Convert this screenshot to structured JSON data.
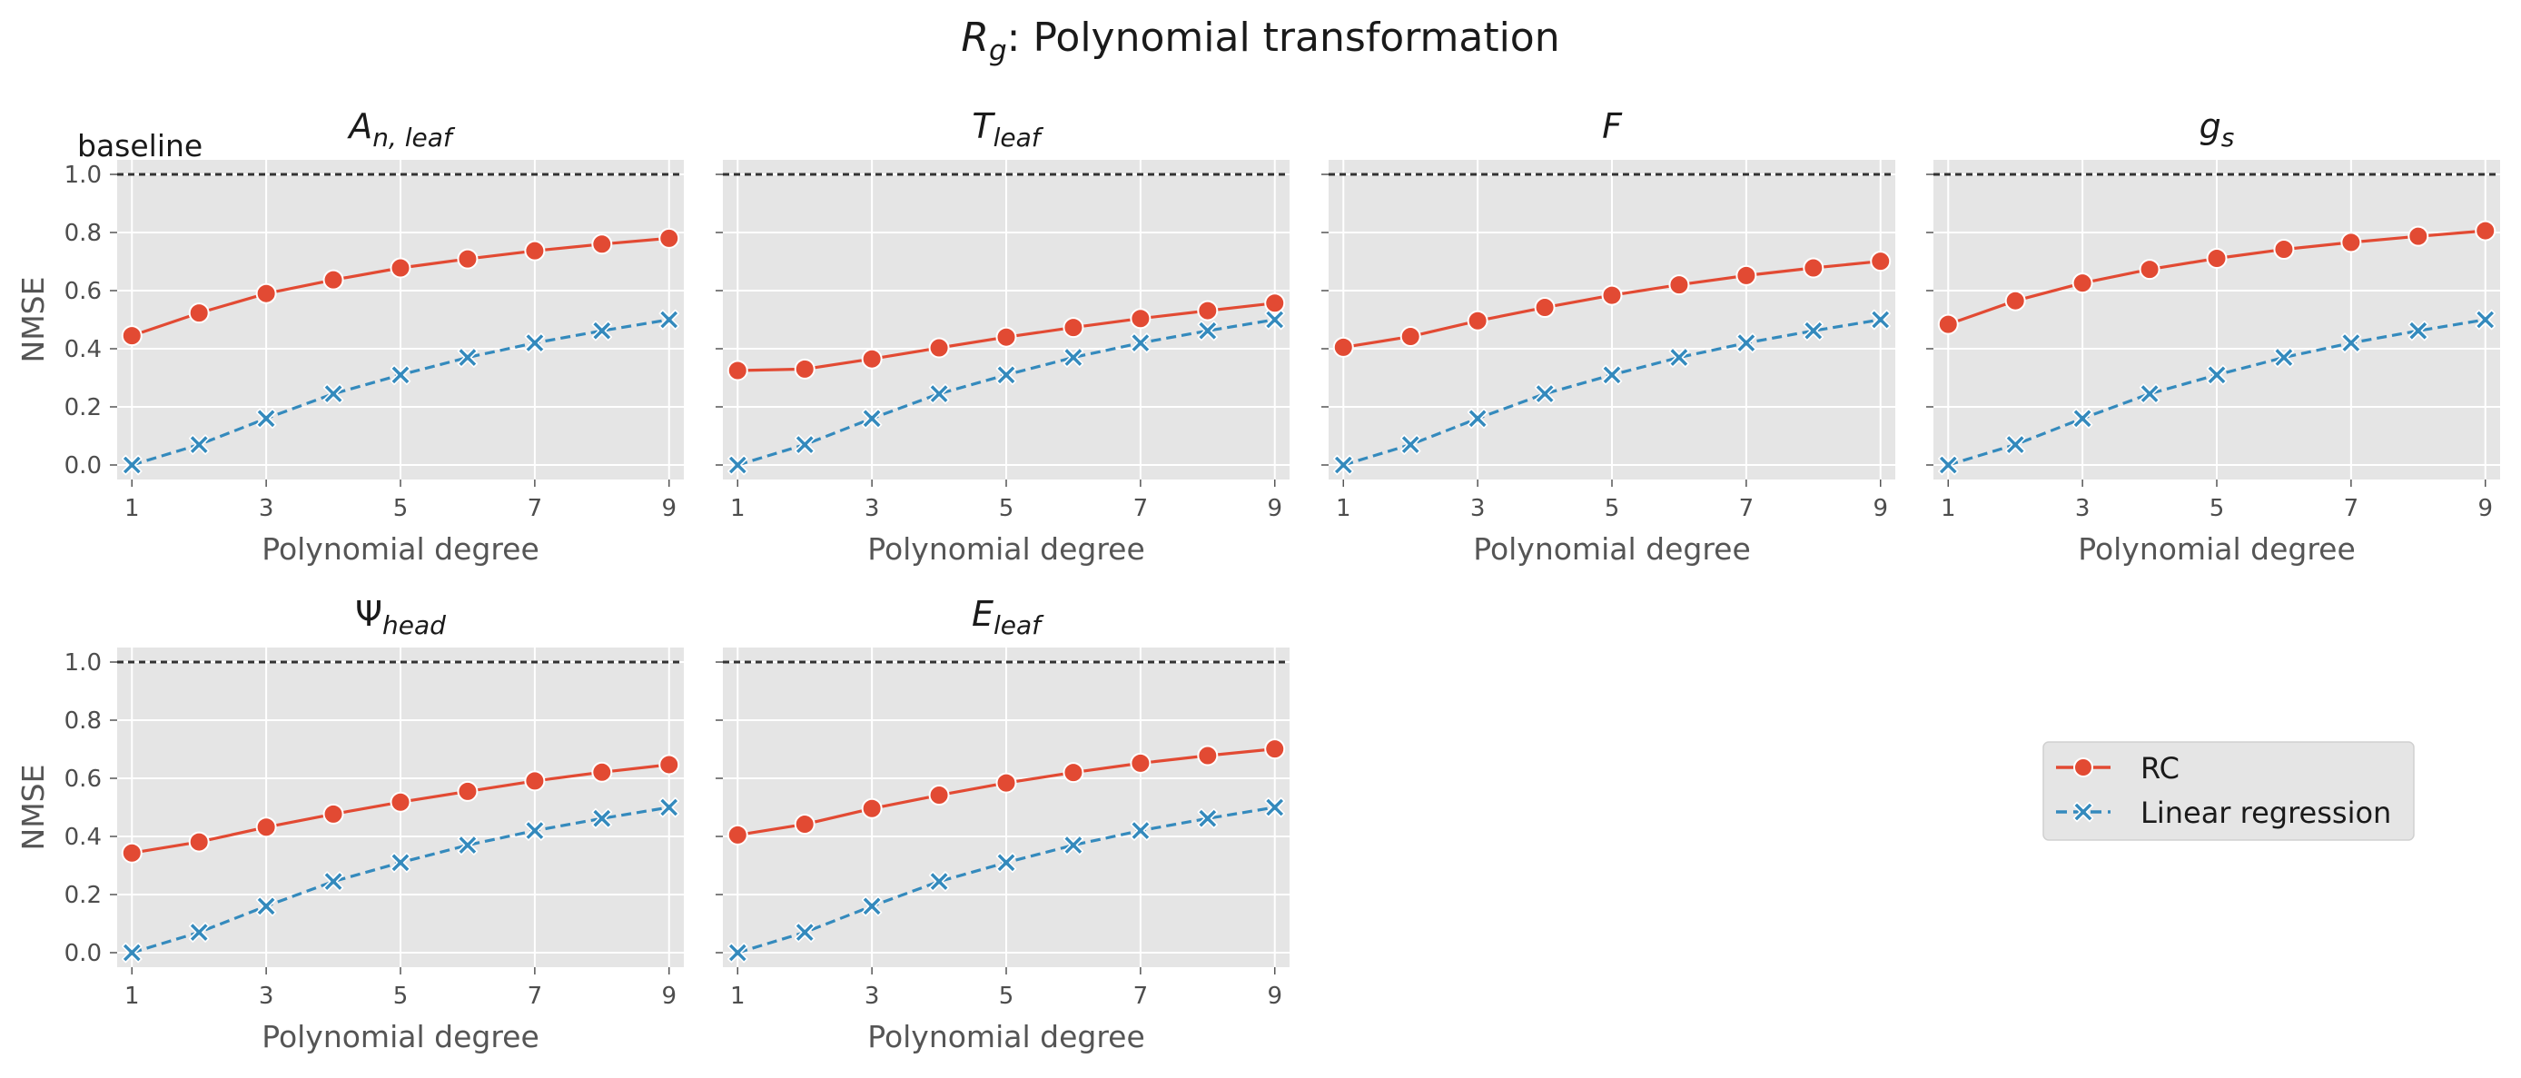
{
  "figure": {
    "title_main": "R",
    "title_sub": "g",
    "title_rest": ": Polynomial transformation"
  },
  "legend": {
    "rc_label": "RC",
    "lr_label": "Linear regression",
    "placement": "right, beside lower row"
  },
  "baseline_label": "baseline",
  "colors": {
    "rc": "#E24A33",
    "lr": "#348ABD",
    "panel_bg": "#E5E5E5",
    "grid": "#FFFFFF",
    "baseline": "#333333"
  },
  "chart_data": [
    {
      "type": "line",
      "title_main": "A",
      "title_sub": "n, leaf",
      "xlabel": "Polynomial degree",
      "ylabel": "NMSE",
      "x": [
        1,
        2,
        3,
        4,
        5,
        6,
        7,
        8,
        9
      ],
      "xticks": [
        1,
        3,
        5,
        7,
        9
      ],
      "yticks": [
        "0.0",
        "0.2",
        "0.4",
        "0.6",
        "0.8",
        "1.0"
      ],
      "ylim": [
        -0.05,
        1.05
      ],
      "baseline": 1.0,
      "grid": true,
      "series": [
        {
          "name": "RC",
          "marker": "circle",
          "line": "solid",
          "values": [
            0.445,
            0.523,
            0.59,
            0.637,
            0.678,
            0.709,
            0.737,
            0.76,
            0.78
          ]
        },
        {
          "name": "Linear regression",
          "marker": "x",
          "line": "dashed",
          "values": [
            0.0,
            0.07,
            0.16,
            0.245,
            0.31,
            0.37,
            0.42,
            0.462,
            0.5
          ]
        }
      ]
    },
    {
      "type": "line",
      "title_main": "T",
      "title_sub": "leaf",
      "xlabel": "Polynomial degree",
      "ylabel": "",
      "x": [
        1,
        2,
        3,
        4,
        5,
        6,
        7,
        8,
        9
      ],
      "xticks": [
        1,
        3,
        5,
        7,
        9
      ],
      "yticks": [
        "",
        "",
        "",
        "",
        "",
        ""
      ],
      "ylim": [
        -0.05,
        1.05
      ],
      "baseline": 1.0,
      "grid": true,
      "series": [
        {
          "name": "RC",
          "marker": "circle",
          "line": "solid",
          "values": [
            0.325,
            0.33,
            0.365,
            0.403,
            0.44,
            0.473,
            0.504,
            0.531,
            0.557
          ]
        },
        {
          "name": "Linear regression",
          "marker": "x",
          "line": "dashed",
          "values": [
            0.0,
            0.07,
            0.16,
            0.245,
            0.31,
            0.37,
            0.42,
            0.462,
            0.5
          ]
        }
      ]
    },
    {
      "type": "line",
      "title_main": "F",
      "title_sub": "",
      "xlabel": "Polynomial degree",
      "ylabel": "",
      "x": [
        1,
        2,
        3,
        4,
        5,
        6,
        7,
        8,
        9
      ],
      "xticks": [
        1,
        3,
        5,
        7,
        9
      ],
      "yticks": [
        "",
        "",
        "",
        "",
        "",
        ""
      ],
      "ylim": [
        -0.05,
        1.05
      ],
      "baseline": 1.0,
      "grid": true,
      "series": [
        {
          "name": "RC",
          "marker": "circle",
          "line": "solid",
          "values": [
            0.405,
            0.442,
            0.496,
            0.542,
            0.584,
            0.62,
            0.652,
            0.678,
            0.701
          ]
        },
        {
          "name": "Linear regression",
          "marker": "x",
          "line": "dashed",
          "values": [
            0.0,
            0.07,
            0.16,
            0.245,
            0.31,
            0.37,
            0.42,
            0.462,
            0.5
          ]
        }
      ]
    },
    {
      "type": "line",
      "title_main": "g",
      "title_sub": "s",
      "xlabel": "Polynomial degree",
      "ylabel": "",
      "x": [
        1,
        2,
        3,
        4,
        5,
        6,
        7,
        8,
        9
      ],
      "xticks": [
        1,
        3,
        5,
        7,
        9
      ],
      "yticks": [
        "",
        "",
        "",
        "",
        "",
        ""
      ],
      "ylim": [
        -0.05,
        1.05
      ],
      "baseline": 1.0,
      "grid": true,
      "series": [
        {
          "name": "RC",
          "marker": "circle",
          "line": "solid",
          "values": [
            0.484,
            0.565,
            0.626,
            0.673,
            0.711,
            0.742,
            0.766,
            0.787,
            0.806
          ]
        },
        {
          "name": "Linear regression",
          "marker": "x",
          "line": "dashed",
          "values": [
            0.0,
            0.07,
            0.16,
            0.245,
            0.31,
            0.37,
            0.42,
            0.462,
            0.5
          ]
        }
      ]
    },
    {
      "type": "line",
      "title_main": "Ψ",
      "title_sub": "head",
      "xlabel": "Polynomial degree",
      "ylabel": "NMSE",
      "x": [
        1,
        2,
        3,
        4,
        5,
        6,
        7,
        8,
        9
      ],
      "xticks": [
        1,
        3,
        5,
        7,
        9
      ],
      "yticks": [
        "0.0",
        "0.2",
        "0.4",
        "0.6",
        "0.8",
        "1.0"
      ],
      "ylim": [
        -0.05,
        1.05
      ],
      "baseline": 1.0,
      "grid": true,
      "series": [
        {
          "name": "RC",
          "marker": "circle",
          "line": "solid",
          "values": [
            0.343,
            0.381,
            0.432,
            0.477,
            0.518,
            0.555,
            0.591,
            0.621,
            0.647
          ]
        },
        {
          "name": "Linear regression",
          "marker": "x",
          "line": "dashed",
          "values": [
            0.0,
            0.07,
            0.16,
            0.245,
            0.31,
            0.37,
            0.42,
            0.462,
            0.5
          ]
        }
      ]
    },
    {
      "type": "line",
      "title_main": "E",
      "title_sub": "leaf",
      "xlabel": "Polynomial degree",
      "ylabel": "",
      "x": [
        1,
        2,
        3,
        4,
        5,
        6,
        7,
        8,
        9
      ],
      "xticks": [
        1,
        3,
        5,
        7,
        9
      ],
      "yticks": [
        "",
        "",
        "",
        "",
        "",
        ""
      ],
      "ylim": [
        -0.05,
        1.05
      ],
      "baseline": 1.0,
      "grid": true,
      "series": [
        {
          "name": "RC",
          "marker": "circle",
          "line": "solid",
          "values": [
            0.405,
            0.442,
            0.496,
            0.542,
            0.584,
            0.62,
            0.652,
            0.678,
            0.701
          ]
        },
        {
          "name": "Linear regression",
          "marker": "x",
          "line": "dashed",
          "values": [
            0.0,
            0.07,
            0.16,
            0.245,
            0.31,
            0.37,
            0.42,
            0.462,
            0.5
          ]
        }
      ]
    }
  ]
}
